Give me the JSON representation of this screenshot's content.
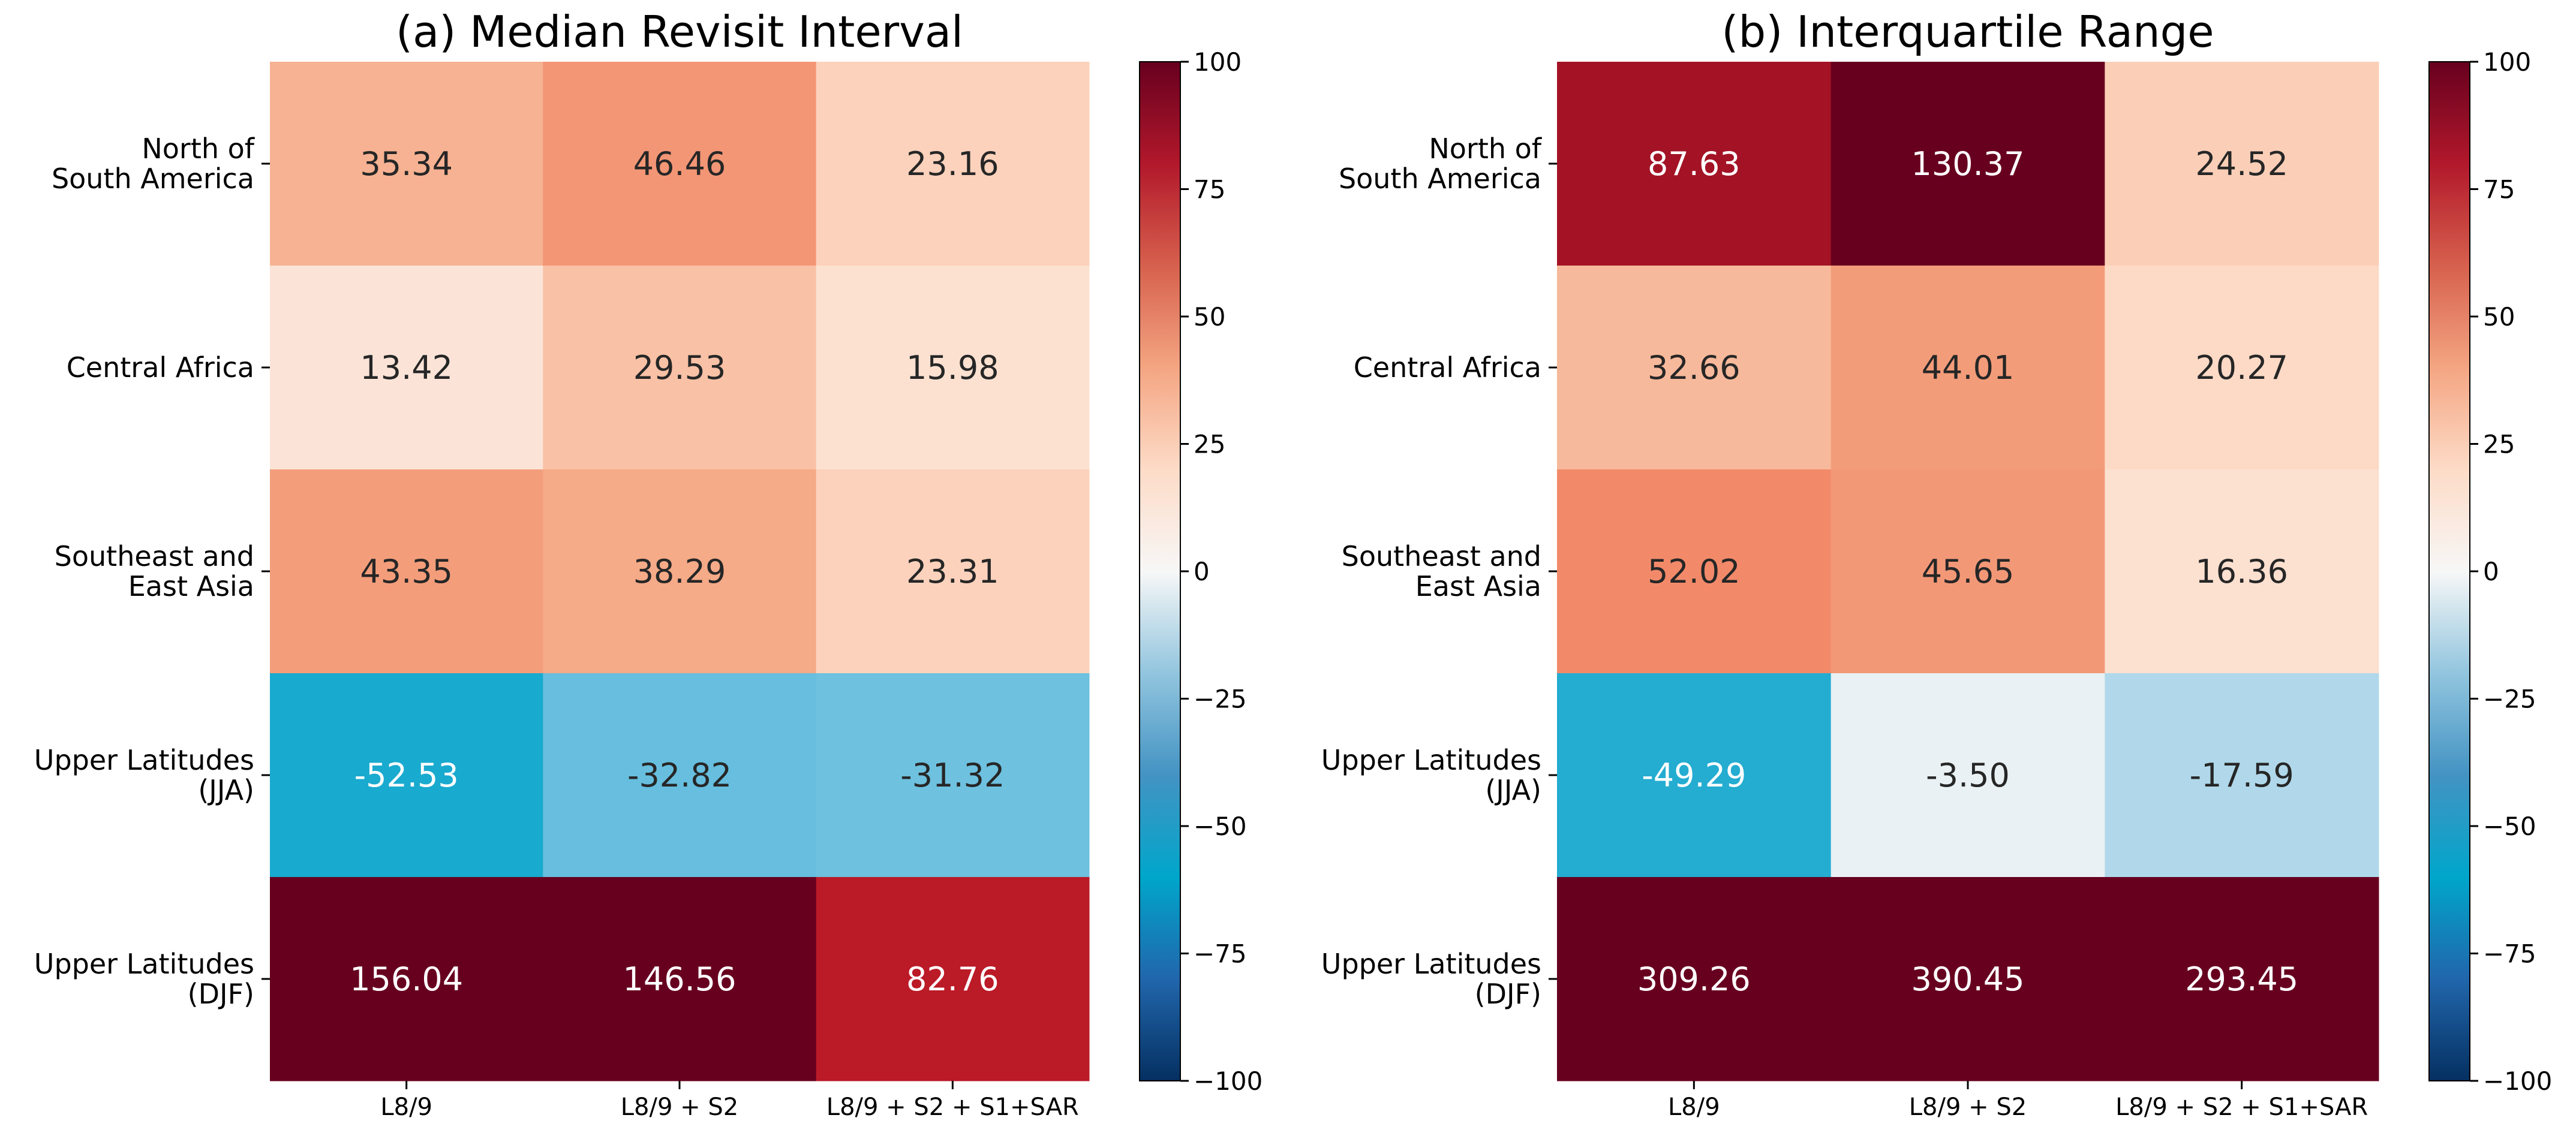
{
  "chart_data": [
    {
      "type": "heatmap",
      "title": "(a) Median Revisit Interval",
      "rows": [
        "North of\nSouth America",
        "Central Africa",
        "Southeast and\nEast Asia",
        "Upper Latitudes\n(JJA)",
        "Upper Latitudes\n(DJF)"
      ],
      "columns": [
        "L8/9",
        "L8/9 + S2",
        "L8/9 + S2 + S1+SAR"
      ],
      "values": [
        [
          35.34,
          46.46,
          23.16
        ],
        [
          13.42,
          29.53,
          15.98
        ],
        [
          43.35,
          38.29,
          23.31
        ],
        [
          -52.53,
          -32.82,
          -31.32
        ],
        [
          156.04,
          146.56,
          82.76
        ]
      ],
      "labels": [
        [
          "35.34",
          "46.46",
          "23.16"
        ],
        [
          "13.42",
          "29.53",
          "15.98"
        ],
        [
          "43.35",
          "38.29",
          "23.31"
        ],
        [
          "-52.53",
          "-32.82",
          "-31.32"
        ],
        [
          "156.04",
          "146.56",
          "82.76"
        ]
      ],
      "vmin": -100,
      "vmax": 100,
      "colorbar_ticks": [
        100,
        75,
        50,
        25,
        0,
        -25,
        -50,
        -75,
        -100
      ],
      "colorbar_tick_labels": [
        "100",
        "75",
        "50",
        "25",
        "0",
        "−25",
        "−50",
        "−75",
        "−100"
      ],
      "colormap": "RdBu_r"
    },
    {
      "type": "heatmap",
      "title": "(b) Interquartile Range",
      "rows": [
        "North of\nSouth America",
        "Central Africa",
        "Southeast and\nEast Asia",
        "Upper Latitudes\n(JJA)",
        "Upper Latitudes\n(DJF)"
      ],
      "columns": [
        "L8/9",
        "L8/9 + S2",
        "L8/9 + S2 + S1+SAR"
      ],
      "values": [
        [
          87.63,
          130.37,
          24.52
        ],
        [
          32.66,
          44.01,
          20.27
        ],
        [
          52.02,
          45.65,
          16.36
        ],
        [
          -49.29,
          -3.5,
          -17.59
        ],
        [
          309.26,
          390.45,
          293.45
        ]
      ],
      "labels": [
        [
          "87.63",
          "130.37",
          "24.52"
        ],
        [
          "32.66",
          "44.01",
          "20.27"
        ],
        [
          "52.02",
          "45.65",
          "16.36"
        ],
        [
          "-49.29",
          "-3.50",
          "-17.59"
        ],
        [
          "309.26",
          "390.45",
          "293.45"
        ]
      ],
      "vmin": -100,
      "vmax": 100,
      "colorbar_ticks": [
        100,
        75,
        50,
        25,
        0,
        -25,
        -50,
        -75,
        -100
      ],
      "colorbar_tick_labels": [
        "100",
        "75",
        "50",
        "25",
        "0",
        "−25",
        "−50",
        "−75",
        "−100"
      ],
      "colormap": "RdBu_r"
    }
  ],
  "colors": {
    "colormap_stops": [
      "#053061",
      "#2166ac",
      "#4393c3",
      "#92c5de",
      "#d1e5f0",
      "#f7f7f7",
      "#fddbc7",
      "#f4a582",
      "#d6604d",
      "#b2182b",
      "#67001f"
    ],
    "text_dark": "#262626",
    "text_light": "#ffffff"
  }
}
